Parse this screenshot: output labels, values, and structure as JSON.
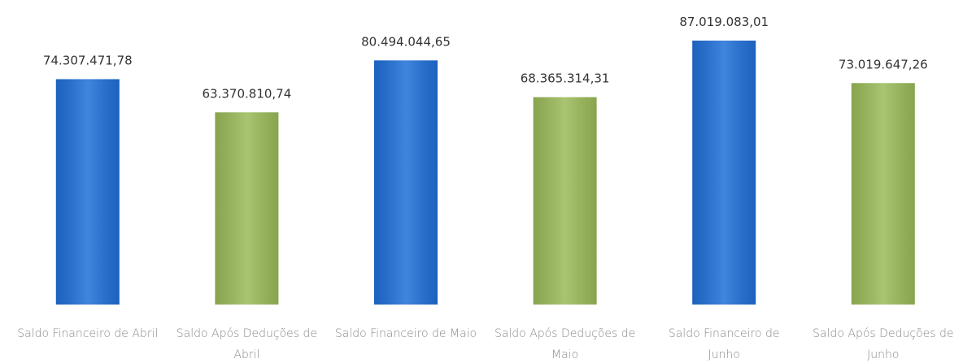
{
  "chart_data": {
    "type": "bar",
    "categories": [
      "Saldo Financeiro de Abril",
      "Saldo Após Deduções de Abril",
      "Saldo Financeiro de Maio",
      "Saldo Após Deduções de Maio",
      "Saldo Financeiro de Junho",
      "Saldo Após Deduções de Junho"
    ],
    "values": [
      74307471.78,
      63370810.74,
      80494044.65,
      68365314.31,
      87019083.01,
      73019647.26
    ],
    "value_labels": [
      "74.307.471,78",
      "63.370.810,74",
      "80.494.044,65",
      "68.365.314,31",
      "87.019.083,01",
      "73.019.647,26"
    ],
    "colors": [
      "#1f6fd8",
      "#9bbb59",
      "#1f6fd8",
      "#9bbb59",
      "#1f6fd8",
      "#9bbb59"
    ],
    "grid": false
  }
}
